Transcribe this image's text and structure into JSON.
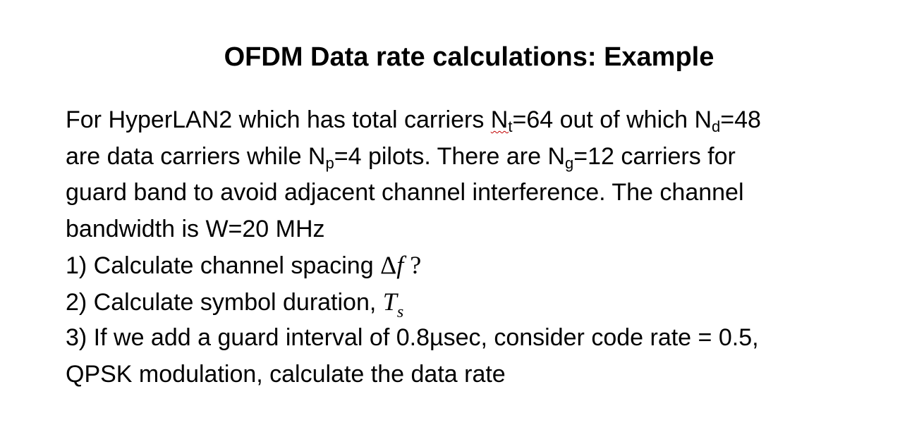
{
  "slide": {
    "title": "OFDM Data rate calculations: Example",
    "intro": {
      "line1_a": "For HyperLAN2 which has total carriers ",
      "nt_base": "N",
      "nt_sub": "t",
      "line1_b": "=64 out of which ",
      "nd_base": "N",
      "nd_sub": "d",
      "line1_c": "=48",
      "line2_a": "are data carriers while ",
      "np_base": "N",
      "np_sub": "p",
      "line2_b": "=4 pilots. There are ",
      "ng_base": "N",
      "ng_sub": "g",
      "line2_c": "=12 carriers for",
      "line3": "guard band to avoid adjacent channel interference. The channel",
      "line4": "bandwidth is W=20 MHz"
    },
    "questions": {
      "q1_text": "1) Calculate channel spacing ",
      "q1_math_delta": "Δ",
      "q1_math_f": "f",
      "q1_math_q": " ?",
      "q2_text": "2) Calculate symbol duration, ",
      "q2_math_T": "T",
      "q2_math_sub": "s",
      "q3_line1": "3) If we add a guard interval of 0.8µsec, consider code rate = 0.5,",
      "q3_line2": "QPSK modulation, calculate the data rate"
    }
  }
}
